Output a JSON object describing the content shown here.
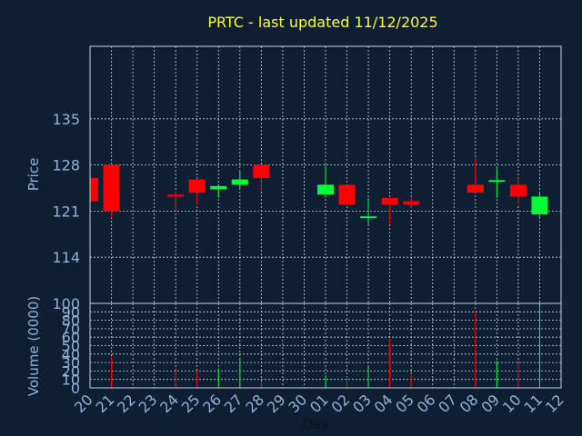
{
  "chart_data": {
    "type": "candlestick",
    "title": "PRTC - last updated 11/12/2025",
    "xlabel": "Day",
    "price_panel": {
      "ylabel": "Price",
      "ylim": [
        107,
        146
      ],
      "yticks": [
        114,
        121,
        128,
        135
      ],
      "grid": true
    },
    "volume_panel": {
      "ylabel": "Volume (0000)",
      "ylim": [
        0,
        100
      ],
      "yticks": [
        0,
        10,
        20,
        30,
        40,
        50,
        60,
        70,
        80,
        90,
        100
      ],
      "grid": true
    },
    "x_ticks": [
      "20",
      "21",
      "22",
      "23",
      "24",
      "25",
      "26",
      "27",
      "28",
      "29",
      "30",
      "01",
      "02",
      "03",
      "04",
      "05",
      "06",
      "07",
      "08",
      "09",
      "10",
      "11",
      "12"
    ],
    "candles": [
      {
        "day": "20",
        "open": 126.0,
        "close": 122.5,
        "high": 126.0,
        "low": 122.5,
        "volume": 0
      },
      {
        "day": "21",
        "open": 128.0,
        "close": 121.0,
        "high": 128.0,
        "low": 120.0,
        "volume": 37
      },
      {
        "day": "24",
        "open": 123.5,
        "close": 123.2,
        "high": 124.0,
        "low": 121.0,
        "volume": 20
      },
      {
        "day": "25",
        "open": 125.8,
        "close": 123.8,
        "high": 126.0,
        "low": 122.0,
        "volume": 20
      },
      {
        "day": "26",
        "open": 124.3,
        "close": 124.8,
        "high": 125.0,
        "low": 123.0,
        "volume": 23
      },
      {
        "day": "27",
        "open": 125.0,
        "close": 125.8,
        "high": 127.0,
        "low": 124.5,
        "volume": 35
      },
      {
        "day": "28",
        "open": 128.0,
        "close": 126.0,
        "high": 128.0,
        "low": 124.0,
        "volume": 7
      },
      {
        "day": "01",
        "open": 123.5,
        "close": 125.0,
        "high": 128.0,
        "low": 123.0,
        "volume": 15
      },
      {
        "day": "02",
        "open": 125.0,
        "close": 122.0,
        "high": 125.0,
        "low": 122.0,
        "volume": 13
      },
      {
        "day": "03",
        "open": 120.0,
        "close": 120.2,
        "high": 123.0,
        "low": 119.0,
        "volume": 25
      },
      {
        "day": "04",
        "open": 123.0,
        "close": 122.0,
        "high": 123.0,
        "low": 119.0,
        "volume": 58
      },
      {
        "day": "05",
        "open": 122.5,
        "close": 122.0,
        "high": 123.0,
        "low": 121.5,
        "volume": 15
      },
      {
        "day": "08",
        "open": 125.0,
        "close": 123.8,
        "high": 129.0,
        "low": 123.8,
        "volume": 91
      },
      {
        "day": "09",
        "open": 125.5,
        "close": 125.7,
        "high": 127.5,
        "low": 123.0,
        "volume": 32
      },
      {
        "day": "10",
        "open": 125.0,
        "close": 123.2,
        "high": 126.0,
        "low": 122.0,
        "volume": 30
      },
      {
        "day": "11",
        "open": 120.5,
        "close": 123.2,
        "high": 124.0,
        "low": 120.0,
        "volume": 98
      }
    ],
    "colors": {
      "background": "#0f1f33",
      "up": "#00ff33",
      "down": "#ff0000",
      "title": "#ffff33",
      "tick": "#8fb2d6",
      "grid": "#c9d3df"
    }
  }
}
